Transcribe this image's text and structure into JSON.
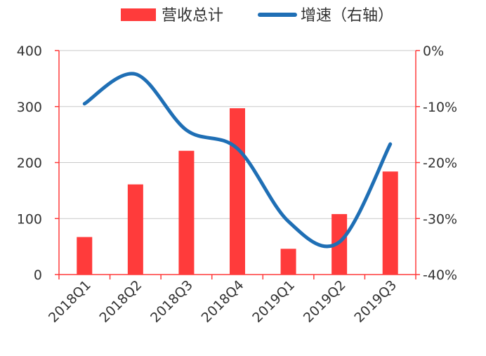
{
  "chart_data": {
    "type": "bar",
    "categories": [
      "2018Q1",
      "2018Q2",
      "2018Q3",
      "2018Q4",
      "2019Q1",
      "2019Q2",
      "2019Q3"
    ],
    "series": [
      {
        "name": "营收总计",
        "type": "bar",
        "axis": "left",
        "color": "#ff3b3b",
        "values": [
          67,
          161,
          221,
          297,
          46,
          108,
          184
        ]
      },
      {
        "name": "增速（右轴）",
        "type": "line",
        "axis": "right",
        "color": "#1f6fb5",
        "values": [
          -9.5,
          -4.2,
          -14.2,
          -17.5,
          -30.5,
          -34.2,
          -16.7
        ]
      }
    ],
    "y_left": {
      "ylim": [
        0,
        400
      ],
      "ticks": [
        0,
        100,
        200,
        300,
        400
      ],
      "tick_labels": [
        "0",
        "100",
        "200",
        "300",
        "400"
      ]
    },
    "y_right": {
      "ylim": [
        -40,
        0
      ],
      "ticks": [
        0,
        -10,
        -20,
        -30,
        -40
      ],
      "tick_labels": [
        "0%",
        "-10%",
        "-20%",
        "-30%",
        "-40%"
      ]
    },
    "grid": true,
    "legend_position": "top",
    "axis_color": "#ff3b3b"
  }
}
